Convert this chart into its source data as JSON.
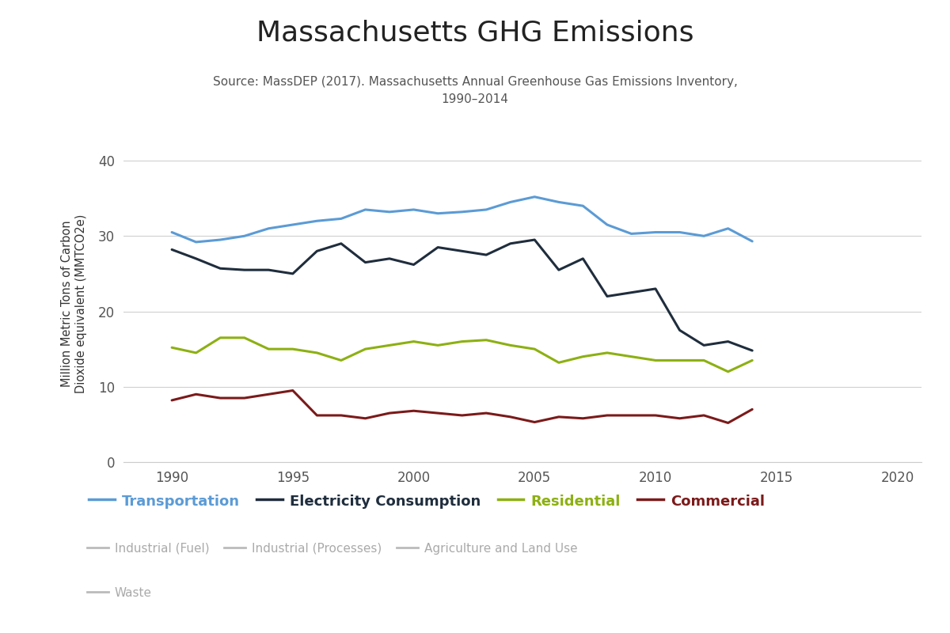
{
  "title": "Massachusetts GHG Emissions",
  "subtitle": "Source: MassDEP (2017). Massachusetts Annual Greenhouse Gas Emissions Inventory,\n1990–2014",
  "ylabel": "Million Metric Tons of Carbon\nDioxide equivalent (MMTCO2e)",
  "xlim": [
    1988,
    2021
  ],
  "ylim": [
    0,
    42
  ],
  "xticks": [
    1990,
    1995,
    2000,
    2005,
    2010,
    2015,
    2020
  ],
  "yticks": [
    0,
    10,
    20,
    30,
    40
  ],
  "background_color": "#ffffff",
  "series": {
    "Transportation": {
      "color": "#5b9bd5",
      "linewidth": 2.2,
      "years": [
        1990,
        1991,
        1992,
        1993,
        1994,
        1995,
        1996,
        1997,
        1998,
        1999,
        2000,
        2001,
        2002,
        2003,
        2004,
        2005,
        2006,
        2007,
        2008,
        2009,
        2010,
        2011,
        2012,
        2013,
        2014
      ],
      "values": [
        30.5,
        29.2,
        29.5,
        30.0,
        31.0,
        31.5,
        32.0,
        32.3,
        33.5,
        33.2,
        33.5,
        33.0,
        33.2,
        33.5,
        34.5,
        35.2,
        34.5,
        34.0,
        31.5,
        30.3,
        30.5,
        30.5,
        30.0,
        31.0,
        29.3
      ]
    },
    "Electricity Consumption": {
      "color": "#1f2d3d",
      "linewidth": 2.2,
      "years": [
        1990,
        1991,
        1992,
        1993,
        1994,
        1995,
        1996,
        1997,
        1998,
        1999,
        2000,
        2001,
        2002,
        2003,
        2004,
        2005,
        2006,
        2007,
        2008,
        2009,
        2010,
        2011,
        2012,
        2013,
        2014
      ],
      "values": [
        28.2,
        27.0,
        25.7,
        25.5,
        25.5,
        25.0,
        28.0,
        29.0,
        26.5,
        27.0,
        26.2,
        28.5,
        28.0,
        27.5,
        29.0,
        29.5,
        25.5,
        27.0,
        22.0,
        22.5,
        23.0,
        17.5,
        15.5,
        16.0,
        14.8
      ]
    },
    "Residential": {
      "color": "#8db012",
      "linewidth": 2.2,
      "years": [
        1990,
        1991,
        1992,
        1993,
        1994,
        1995,
        1996,
        1997,
        1998,
        1999,
        2000,
        2001,
        2002,
        2003,
        2004,
        2005,
        2006,
        2007,
        2008,
        2009,
        2010,
        2011,
        2012,
        2013,
        2014
      ],
      "values": [
        15.2,
        14.5,
        16.5,
        16.5,
        15.0,
        15.0,
        14.5,
        13.5,
        15.0,
        15.5,
        16.0,
        15.5,
        16.0,
        16.2,
        15.5,
        15.0,
        13.2,
        14.0,
        14.5,
        14.0,
        13.5,
        13.5,
        13.5,
        12.0,
        13.5
      ]
    },
    "Commercial": {
      "color": "#7b1a1a",
      "linewidth": 2.2,
      "years": [
        1990,
        1991,
        1992,
        1993,
        1994,
        1995,
        1996,
        1997,
        1998,
        1999,
        2000,
        2001,
        2002,
        2003,
        2004,
        2005,
        2006,
        2007,
        2008,
        2009,
        2010,
        2011,
        2012,
        2013,
        2014
      ],
      "values": [
        8.2,
        9.0,
        8.5,
        8.5,
        9.0,
        9.5,
        6.2,
        6.2,
        5.8,
        6.5,
        6.8,
        6.5,
        6.2,
        6.5,
        6.0,
        5.3,
        6.0,
        5.8,
        6.2,
        6.2,
        6.2,
        5.8,
        6.2,
        5.2,
        7.0
      ]
    }
  },
  "legend_active": [
    {
      "label": "Transportation",
      "color": "#5b9bd5"
    },
    {
      "label": "Electricity Consumption",
      "color": "#1f2d3d"
    },
    {
      "label": "Residential",
      "color": "#8db012"
    },
    {
      "label": "Commercial",
      "color": "#7b1a1a"
    }
  ],
  "legend_inactive": [
    {
      "label": "Industrial (Fuel)",
      "color": "#bbbbbb"
    },
    {
      "label": "Industrial (Processes)",
      "color": "#bbbbbb"
    },
    {
      "label": "Agriculture and Land Use",
      "color": "#bbbbbb"
    },
    {
      "label": "Waste",
      "color": "#bbbbbb"
    }
  ],
  "title_fontsize": 26,
  "subtitle_fontsize": 11,
  "ylabel_fontsize": 10.5,
  "tick_fontsize": 12,
  "legend_active_fontsize": 13,
  "legend_inactive_fontsize": 11
}
